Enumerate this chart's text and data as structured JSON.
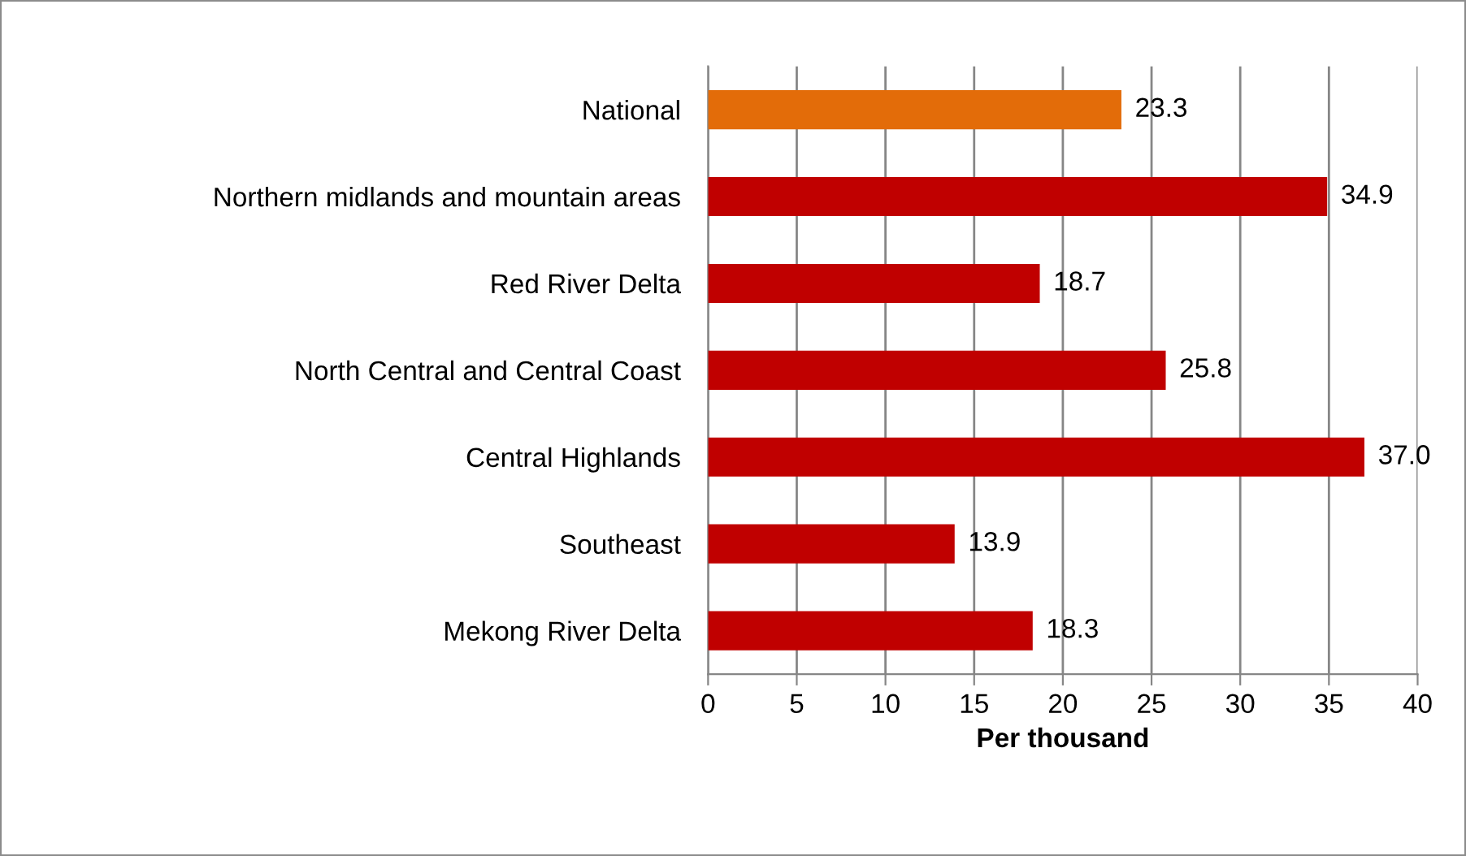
{
  "chart_data": {
    "type": "bar",
    "orientation": "horizontal",
    "xlabel": "Per thousand",
    "categories": [
      "National",
      "Northern midlands and mountain areas",
      "Red River Delta",
      "North Central and Central Coast",
      "Central Highlands",
      "Southeast",
      "Mekong River Delta"
    ],
    "values": [
      23.3,
      34.9,
      18.7,
      25.8,
      37.0,
      13.9,
      18.3
    ],
    "colors": [
      "#e36c09",
      "#c00000",
      "#c00000",
      "#c00000",
      "#c00000",
      "#c00000",
      "#c00000"
    ],
    "value_labels": [
      "23.3",
      "34.9",
      "18.7",
      "25.8",
      "37.0",
      "13.9",
      "18.3"
    ],
    "xlim": [
      0,
      40
    ],
    "xticks": [
      0,
      5,
      10,
      15,
      20,
      25,
      30,
      35,
      40
    ],
    "grid": "x"
  }
}
